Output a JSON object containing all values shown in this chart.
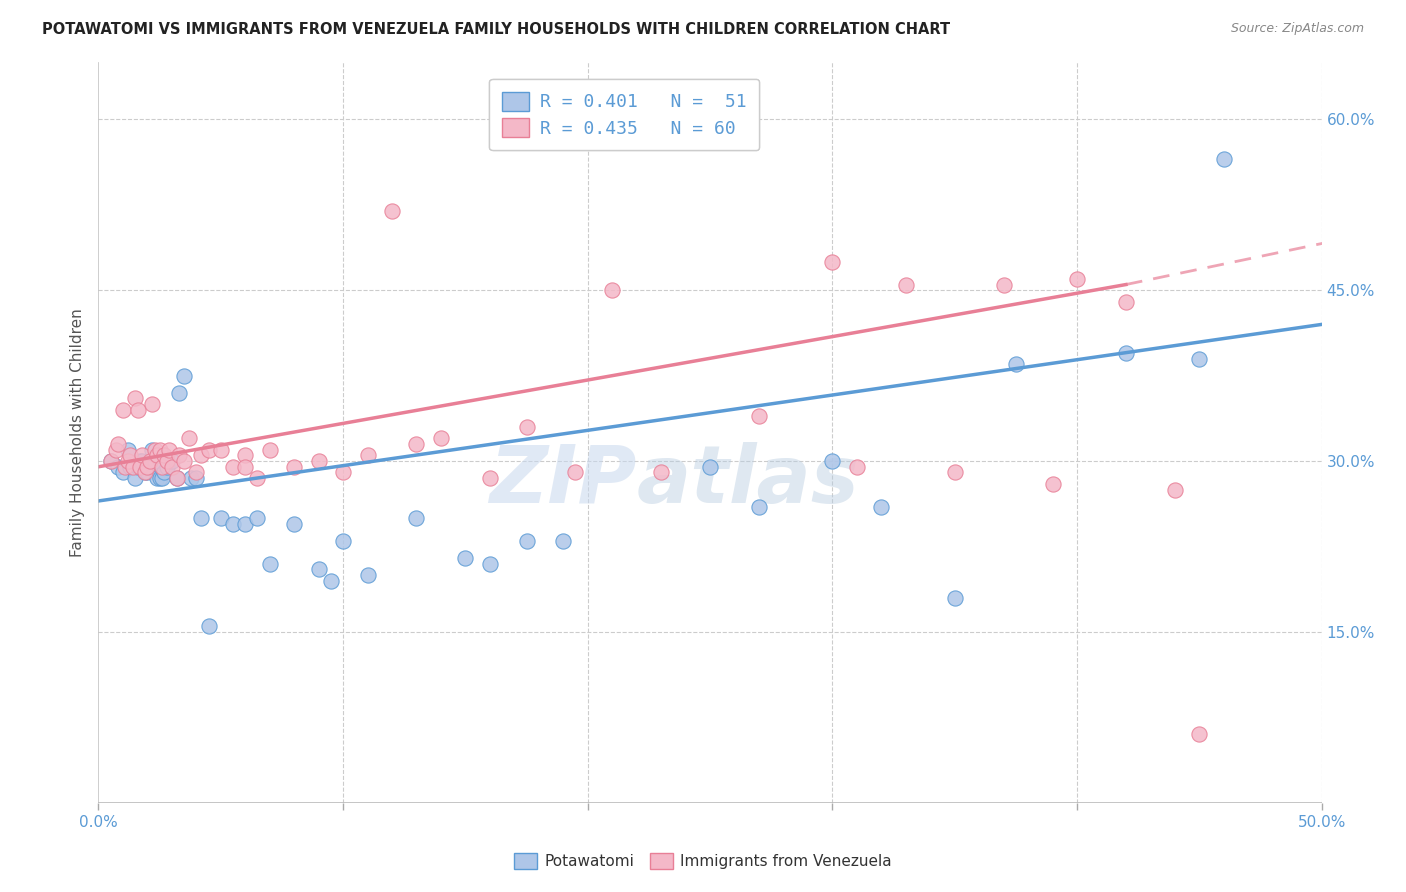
{
  "title": "POTAWATOMI VS IMMIGRANTS FROM VENEZUELA FAMILY HOUSEHOLDS WITH CHILDREN CORRELATION CHART",
  "source": "Source: ZipAtlas.com",
  "ylabel": "Family Households with Children",
  "xlim": [
    0.0,
    0.5
  ],
  "ylim": [
    0.0,
    0.65
  ],
  "yticks_right": [
    0.15,
    0.3,
    0.45,
    0.6
  ],
  "ytick_right_labels": [
    "15.0%",
    "30.0%",
    "45.0%",
    "60.0%"
  ],
  "blue_color": "#5b9bd5",
  "pink_color": "#e87f96",
  "blue_fill": "#aec6e8",
  "pink_fill": "#f4b8c8",
  "watermark_zip": "ZIP",
  "watermark_atlas": "atlas",
  "blue_legend": "R = 0.401   N =  51",
  "pink_legend": "R = 0.435   N = 60",
  "blue_scatter_x": [
    0.005,
    0.008,
    0.01,
    0.012,
    0.013,
    0.015,
    0.016,
    0.017,
    0.018,
    0.019,
    0.02,
    0.021,
    0.022,
    0.023,
    0.024,
    0.025,
    0.026,
    0.027,
    0.028,
    0.03,
    0.032,
    0.033,
    0.035,
    0.038,
    0.04,
    0.042,
    0.045,
    0.05,
    0.055,
    0.06,
    0.065,
    0.07,
    0.08,
    0.09,
    0.095,
    0.1,
    0.11,
    0.13,
    0.15,
    0.16,
    0.175,
    0.19,
    0.25,
    0.27,
    0.3,
    0.32,
    0.35,
    0.375,
    0.42,
    0.45,
    0.46
  ],
  "blue_scatter_y": [
    0.3,
    0.295,
    0.29,
    0.31,
    0.295,
    0.285,
    0.295,
    0.3,
    0.3,
    0.29,
    0.29,
    0.295,
    0.31,
    0.3,
    0.285,
    0.285,
    0.285,
    0.29,
    0.295,
    0.3,
    0.285,
    0.36,
    0.375,
    0.285,
    0.285,
    0.25,
    0.155,
    0.25,
    0.245,
    0.245,
    0.25,
    0.21,
    0.245,
    0.205,
    0.195,
    0.23,
    0.2,
    0.25,
    0.215,
    0.21,
    0.23,
    0.23,
    0.295,
    0.26,
    0.3,
    0.26,
    0.18,
    0.385,
    0.395,
    0.39,
    0.565
  ],
  "pink_scatter_x": [
    0.005,
    0.007,
    0.008,
    0.01,
    0.011,
    0.012,
    0.013,
    0.014,
    0.015,
    0.016,
    0.017,
    0.018,
    0.019,
    0.02,
    0.021,
    0.022,
    0.023,
    0.024,
    0.025,
    0.026,
    0.027,
    0.028,
    0.029,
    0.03,
    0.032,
    0.033,
    0.035,
    0.037,
    0.04,
    0.042,
    0.045,
    0.05,
    0.055,
    0.06,
    0.065,
    0.07,
    0.08,
    0.09,
    0.1,
    0.11,
    0.12,
    0.13,
    0.14,
    0.16,
    0.175,
    0.195,
    0.21,
    0.23,
    0.27,
    0.3,
    0.31,
    0.33,
    0.35,
    0.37,
    0.39,
    0.4,
    0.42,
    0.44,
    0.45,
    0.06
  ],
  "pink_scatter_y": [
    0.3,
    0.31,
    0.315,
    0.345,
    0.295,
    0.3,
    0.305,
    0.295,
    0.355,
    0.345,
    0.295,
    0.305,
    0.29,
    0.295,
    0.3,
    0.35,
    0.31,
    0.305,
    0.31,
    0.295,
    0.305,
    0.3,
    0.31,
    0.295,
    0.285,
    0.305,
    0.3,
    0.32,
    0.29,
    0.305,
    0.31,
    0.31,
    0.295,
    0.305,
    0.285,
    0.31,
    0.295,
    0.3,
    0.29,
    0.305,
    0.52,
    0.315,
    0.32,
    0.285,
    0.33,
    0.29,
    0.45,
    0.29,
    0.34,
    0.475,
    0.295,
    0.455,
    0.29,
    0.455,
    0.28,
    0.46,
    0.44,
    0.275,
    0.06,
    0.295
  ]
}
